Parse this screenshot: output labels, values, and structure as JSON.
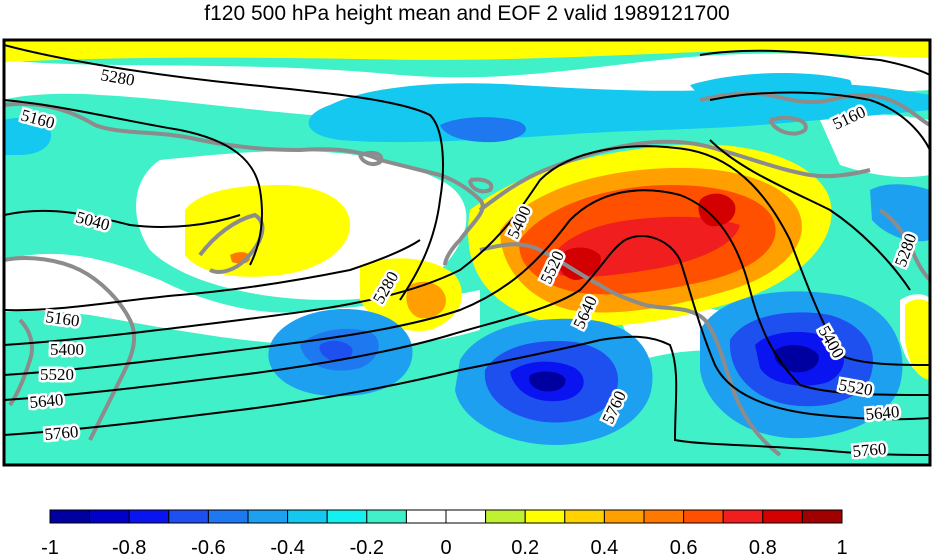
{
  "title": "f120 500 hPa height mean and EOF 2 valid 1989121700",
  "contour_labels": [
    "5280",
    "5160",
    "5040",
    "5160",
    "5400",
    "5520",
    "5640",
    "5760",
    "5280",
    "5400",
    "5520",
    "5640",
    "5400",
    "5520",
    "5640",
    "5760",
    "5160",
    "5280"
  ],
  "colorbar": {
    "ticks": [
      "-1",
      "-0.8",
      "-0.6",
      "-0.4",
      "-0.2",
      "0",
      "0.2",
      "0.4",
      "0.6",
      "0.8",
      "1"
    ],
    "colors": [
      "#0000a0",
      "#0000c8",
      "#0a14f0",
      "#1e50f0",
      "#1e78f0",
      "#1ea0f0",
      "#14c8f0",
      "#14f0f0",
      "#40f0c8",
      "#ffffff",
      "#ffffff",
      "#c0f032",
      "#ffff00",
      "#ffd200",
      "#ffa000",
      "#ff7800",
      "#ff5000",
      "#f01e1e",
      "#d20000",
      "#a00000"
    ]
  },
  "colors": {
    "contour": "#000000",
    "coastline": "#8c8c8c",
    "frame": "#000000"
  }
}
